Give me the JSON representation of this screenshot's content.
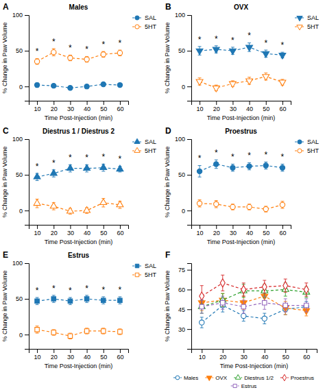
{
  "chart_data": [
    {
      "type": "line",
      "title": "Males",
      "xlabel": "Time Post-Injection (min)",
      "ylabel": "% Change in Paw Volume",
      "x": [
        10,
        20,
        30,
        40,
        50,
        60
      ],
      "xlim": [
        5,
        65
      ],
      "xticks": [
        10,
        20,
        30,
        40,
        50,
        60
      ],
      "ylim": [
        -20,
        100
      ],
      "yticks": [
        0,
        50,
        100
      ],
      "grid": false,
      "legend": "upper right",
      "series": [
        {
          "name": "SAL",
          "values": [
            2,
            1,
            -2,
            0,
            3,
            2
          ],
          "errors": [
            3,
            2,
            2,
            2,
            2,
            2
          ],
          "marker": "circle",
          "line_style": "dashed"
        },
        {
          "name": "5HT",
          "values": [
            35,
            48,
            40,
            38,
            45,
            47
          ],
          "errors": [
            4,
            5,
            4,
            4,
            4,
            4
          ],
          "marker": "circle-open",
          "line_style": "dashed"
        }
      ],
      "annotations": [
        {
          "text": "A"
        },
        {
          "text": "*",
          "x": 10,
          "y": 45
        },
        {
          "text": "*",
          "x": 20,
          "y": 59
        },
        {
          "text": "*",
          "x": 30,
          "y": 50
        },
        {
          "text": "*",
          "x": 40,
          "y": 48
        },
        {
          "text": "*",
          "x": 50,
          "y": 55
        },
        {
          "text": "*",
          "x": 60,
          "y": 57
        }
      ]
    },
    {
      "type": "line",
      "title": "OVX",
      "xlabel": "Time Post-Injection (min)",
      "ylabel": "% Change in Paw Volume",
      "x": [
        10,
        20,
        30,
        40,
        50,
        60
      ],
      "xlim": [
        5,
        65
      ],
      "xticks": [
        10,
        20,
        30,
        40,
        50,
        60
      ],
      "ylim": [
        -20,
        100
      ],
      "yticks": [
        0,
        50,
        100
      ],
      "grid": false,
      "legend": "upper right",
      "series": [
        {
          "name": "SAL",
          "values": [
            50,
            52,
            50,
            55,
            46,
            44
          ],
          "errors": [
            6,
            5,
            5,
            6,
            5,
            4
          ],
          "marker": "triangle-down",
          "line_style": "dashed"
        },
        {
          "name": "5HT",
          "values": [
            7,
            -2,
            4,
            8,
            14,
            6
          ],
          "errors": [
            5,
            4,
            4,
            5,
            5,
            4
          ],
          "marker": "triangle-down-open",
          "line_style": "dashed"
        }
      ],
      "annotations": [
        {
          "text": "B"
        },
        {
          "text": "*",
          "x": 10,
          "y": 62
        },
        {
          "text": "*",
          "x": 20,
          "y": 63
        },
        {
          "text": "*",
          "x": 30,
          "y": 61
        },
        {
          "text": "*",
          "x": 40,
          "y": 67
        },
        {
          "text": "*",
          "x": 50,
          "y": 57
        },
        {
          "text": "*",
          "x": 60,
          "y": 54
        }
      ]
    },
    {
      "type": "line",
      "title": "Diestrus 1 / Diestrus 2",
      "xlabel": "Time Post-Injection (min)",
      "ylabel": "% Change in Paw Volume",
      "x": [
        10,
        20,
        30,
        40,
        50,
        60
      ],
      "xlim": [
        5,
        65
      ],
      "xticks": [
        10,
        20,
        30,
        40,
        50,
        60
      ],
      "ylim": [
        -20,
        100
      ],
      "yticks": [
        0,
        50,
        100
      ],
      "grid": false,
      "legend": "upper right",
      "series": [
        {
          "name": "SAL",
          "values": [
            47,
            52,
            59,
            59,
            60,
            58
          ],
          "errors": [
            5,
            5,
            5,
            5,
            5,
            4
          ],
          "marker": "triangle-up",
          "line_style": "dashed"
        },
        {
          "name": "5HT",
          "values": [
            10,
            6,
            -1,
            0,
            11,
            8
          ],
          "errors": [
            6,
            5,
            4,
            4,
            6,
            5
          ],
          "marker": "triangle-up-open",
          "line_style": "dashed"
        }
      ],
      "annotations": [
        {
          "text": "C"
        },
        {
          "text": "*",
          "x": 10,
          "y": 58
        },
        {
          "text": "*",
          "x": 20,
          "y": 63
        },
        {
          "text": "*",
          "x": 30,
          "y": 70
        },
        {
          "text": "*",
          "x": 40,
          "y": 70
        },
        {
          "text": "*",
          "x": 50,
          "y": 71
        },
        {
          "text": "*",
          "x": 60,
          "y": 68
        }
      ]
    },
    {
      "type": "line",
      "title": "Proestrus",
      "xlabel": "Time Post-Injection (min)",
      "ylabel": "% Change in Paw Volume",
      "x": [
        10,
        20,
        30,
        40,
        50,
        60
      ],
      "xlim": [
        5,
        65
      ],
      "xticks": [
        10,
        20,
        30,
        40,
        50,
        60
      ],
      "ylim": [
        -20,
        100
      ],
      "yticks": [
        0,
        50,
        100
      ],
      "grid": false,
      "legend": "upper right",
      "series": [
        {
          "name": "SAL",
          "values": [
            55,
            65,
            60,
            62,
            63,
            60
          ],
          "errors": [
            8,
            6,
            5,
            5,
            5,
            5
          ],
          "marker": "circle",
          "line_style": "dashed"
        },
        {
          "name": "5HT",
          "values": [
            10,
            9,
            5,
            5,
            2,
            8
          ],
          "errors": [
            5,
            5,
            4,
            4,
            4,
            5
          ],
          "marker": "circle-open",
          "line_style": "dashed"
        }
      ],
      "annotations": [
        {
          "text": "D"
        },
        {
          "text": "*",
          "x": 10,
          "y": 69
        },
        {
          "text": "*",
          "x": 20,
          "y": 77
        },
        {
          "text": "*",
          "x": 30,
          "y": 71
        },
        {
          "text": "*",
          "x": 40,
          "y": 73
        },
        {
          "text": "*",
          "x": 50,
          "y": 74
        },
        {
          "text": "*",
          "x": 60,
          "y": 71
        }
      ]
    },
    {
      "type": "line",
      "title": "Estrus",
      "xlabel": "Time Post-Injection (min)",
      "ylabel": "% Change in Paw Volume",
      "x": [
        10,
        20,
        30,
        40,
        50,
        60
      ],
      "xlim": [
        5,
        65
      ],
      "xticks": [
        10,
        20,
        30,
        40,
        50,
        60
      ],
      "ylim": [
        -20,
        100
      ],
      "yticks": [
        0,
        50,
        100
      ],
      "grid": false,
      "legend": "upper right",
      "series": [
        {
          "name": "SAL",
          "values": [
            47,
            50,
            47,
            50,
            48,
            48
          ],
          "errors": [
            5,
            5,
            5,
            5,
            5,
            5
          ],
          "marker": "square",
          "line_style": "dashed"
        },
        {
          "name": "5HT",
          "values": [
            7,
            3,
            -2,
            5,
            5,
            4
          ],
          "errors": [
            5,
            4,
            4,
            4,
            4,
            4
          ],
          "marker": "square-open",
          "line_style": "dashed"
        }
      ],
      "annotations": [
        {
          "text": "E"
        },
        {
          "text": "*",
          "x": 10,
          "y": 58
        },
        {
          "text": "*",
          "x": 20,
          "y": 61
        },
        {
          "text": "*",
          "x": 30,
          "y": 58
        },
        {
          "text": "*",
          "x": 40,
          "y": 61
        },
        {
          "text": "*",
          "x": 50,
          "y": 59
        },
        {
          "text": "*",
          "x": 60,
          "y": 59
        }
      ]
    },
    {
      "type": "line",
      "xlabel": "Time Post-Injection (min)",
      "ylabel": "% Change in Paw Volume",
      "x": [
        10,
        20,
        30,
        40,
        50,
        60
      ],
      "xlim": [
        5,
        65
      ],
      "xticks": [
        10,
        20,
        30,
        40,
        50,
        60
      ],
      "ylim": [
        15,
        80
      ],
      "yticks": [
        30,
        45,
        60,
        75
      ],
      "grid": false,
      "legend": "lower center",
      "series": [
        {
          "name": "Males",
          "values": [
            35,
            48,
            40,
            38,
            45,
            47
          ],
          "errors": [
            4,
            5,
            4,
            4,
            4,
            4
          ],
          "marker": "circle-open",
          "line_style": "dashed"
        },
        {
          "name": "OVX",
          "values": [
            50,
            52,
            50,
            55,
            46,
            44
          ],
          "errors": [
            6,
            5,
            5,
            6,
            5,
            4
          ],
          "marker": "triangle-down",
          "line_style": "dashed"
        },
        {
          "name": "Diestrus 1/2",
          "values": [
            47,
            52,
            59,
            59,
            60,
            58
          ],
          "errors": [
            5,
            5,
            5,
            5,
            5,
            4
          ],
          "marker": "triangle-up-open",
          "line_style": "dashed"
        },
        {
          "name": "Proestrus",
          "values": [
            55,
            65,
            60,
            62,
            63,
            60
          ],
          "errors": [
            8,
            6,
            5,
            5,
            5,
            5
          ],
          "marker": "diamond-open",
          "line_style": "dashed"
        },
        {
          "name": "Estrus",
          "values": [
            47,
            50,
            47,
            50,
            48,
            48
          ],
          "errors": [
            5,
            5,
            5,
            5,
            5,
            5
          ],
          "marker": "square-open",
          "line_style": "dashed"
        }
      ],
      "annotations": [
        {
          "text": "F"
        }
      ]
    }
  ]
}
